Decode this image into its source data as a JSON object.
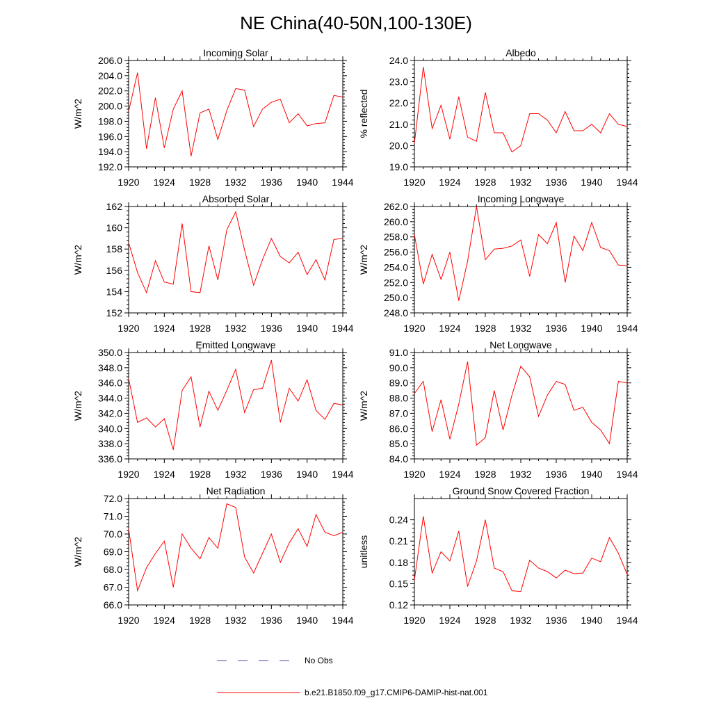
{
  "figure": {
    "title": "NE China(40-50N,100-130E)"
  },
  "legend": {
    "obs_label": "No Obs",
    "obs_color": "#4a4aa8",
    "model_label": "b.e21.B1850.f09_g17.CMIP6-DAMIP-hist-nat.001",
    "model_color": "#ff0000"
  },
  "chart_data": [
    {
      "type": "line",
      "title": "Incoming Solar",
      "ylabel": "W/m^2",
      "xlim": [
        1920,
        1944
      ],
      "xticks": [
        "1920",
        "1924",
        "1928",
        "1932",
        "1936",
        "1940",
        "1944"
      ],
      "ylim": [
        192.0,
        206.0
      ],
      "yticks": [
        "192.0",
        "194.0",
        "196.0",
        "198.0",
        "200.0",
        "202.0",
        "204.0",
        "206.0"
      ],
      "x": [
        1920,
        1921,
        1922,
        1923,
        1924,
        1925,
        1926,
        1927,
        1928,
        1929,
        1930,
        1931,
        1932,
        1933,
        1934,
        1935,
        1936,
        1937,
        1938,
        1939,
        1940,
        1941,
        1942,
        1943,
        1944
      ],
      "series": [
        {
          "values": [
            199.3,
            204.4,
            194.4,
            201.1,
            194.5,
            199.6,
            202.0,
            193.4,
            199.1,
            199.6,
            195.6,
            199.4,
            202.3,
            202.1,
            197.3,
            199.6,
            200.5,
            200.9,
            197.8,
            199.0,
            197.4,
            197.7,
            197.8,
            201.4,
            201.2
          ]
        }
      ]
    },
    {
      "type": "line",
      "title": "Albedo",
      "ylabel": "% reflected",
      "xlim": [
        1920,
        1944
      ],
      "xticks": [
        "1920",
        "1924",
        "1928",
        "1932",
        "1936",
        "1940",
        "1944"
      ],
      "ylim": [
        19.0,
        24.0
      ],
      "yticks": [
        "19.0",
        "20.0",
        "21.0",
        "22.0",
        "23.0",
        "24.0"
      ],
      "x": [
        1920,
        1921,
        1922,
        1923,
        1924,
        1925,
        1926,
        1927,
        1928,
        1929,
        1930,
        1931,
        1932,
        1933,
        1934,
        1935,
        1936,
        1937,
        1938,
        1939,
        1940,
        1941,
        1942,
        1943,
        1944
      ],
      "series": [
        {
          "values": [
            20.1,
            23.7,
            20.8,
            21.9,
            20.3,
            22.3,
            20.4,
            20.2,
            22.5,
            20.6,
            20.6,
            19.7,
            20.0,
            21.5,
            21.5,
            21.2,
            20.6,
            21.6,
            20.7,
            20.7,
            21.0,
            20.6,
            21.5,
            21.0,
            20.9
          ]
        }
      ]
    },
    {
      "type": "line",
      "title": "Absorbed Solar",
      "ylabel": "W/m^2",
      "xlim": [
        1920,
        1944
      ],
      "xticks": [
        "1920",
        "1924",
        "1928",
        "1932",
        "1936",
        "1940",
        "1944"
      ],
      "ylim": [
        152,
        162
      ],
      "yticks": [
        "152",
        "154",
        "156",
        "158",
        "160",
        "162"
      ],
      "x": [
        1920,
        1921,
        1922,
        1923,
        1924,
        1925,
        1926,
        1927,
        1928,
        1929,
        1930,
        1931,
        1932,
        1933,
        1934,
        1935,
        1936,
        1937,
        1938,
        1939,
        1940,
        1941,
        1942,
        1943,
        1944
      ],
      "series": [
        {
          "values": [
            158.6,
            155.8,
            153.9,
            156.9,
            154.9,
            154.7,
            160.4,
            154.0,
            153.9,
            158.3,
            155.1,
            159.8,
            161.5,
            157.9,
            154.6,
            157.0,
            159.0,
            157.3,
            156.7,
            157.7,
            155.6,
            157.0,
            155.1,
            158.9,
            159.0
          ]
        }
      ]
    },
    {
      "type": "line",
      "title": "Incoming Longwave",
      "ylabel": "W/m^2",
      "xlim": [
        1920,
        1944
      ],
      "xticks": [
        "1920",
        "1924",
        "1928",
        "1932",
        "1936",
        "1940",
        "1944"
      ],
      "ylim": [
        248.0,
        262.0
      ],
      "yticks": [
        "248.0",
        "250.0",
        "252.0",
        "254.0",
        "256.0",
        "258.0",
        "260.0",
        "262.0"
      ],
      "x": [
        1920,
        1921,
        1922,
        1923,
        1924,
        1925,
        1926,
        1927,
        1928,
        1929,
        1930,
        1931,
        1932,
        1933,
        1934,
        1935,
        1936,
        1937,
        1938,
        1939,
        1940,
        1941,
        1942,
        1943,
        1944
      ],
      "series": [
        {
          "values": [
            258.3,
            251.8,
            255.7,
            252.4,
            256.0,
            249.6,
            254.8,
            262.0,
            255.0,
            256.4,
            256.5,
            256.8,
            257.6,
            252.8,
            258.3,
            257.1,
            259.9,
            252.0,
            258.1,
            256.2,
            259.9,
            256.6,
            256.2,
            254.3,
            254.2
          ]
        }
      ]
    },
    {
      "type": "line",
      "title": "Emitted Longwave",
      "ylabel": "W/m^2",
      "xlim": [
        1920,
        1944
      ],
      "xticks": [
        "1920",
        "1924",
        "1928",
        "1932",
        "1936",
        "1940",
        "1944"
      ],
      "ylim": [
        336.0,
        350.0
      ],
      "yticks": [
        "336.0",
        "338.0",
        "340.0",
        "342.0",
        "344.0",
        "346.0",
        "348.0",
        "350.0"
      ],
      "x": [
        1920,
        1921,
        1922,
        1923,
        1924,
        1925,
        1926,
        1927,
        1928,
        1929,
        1930,
        1931,
        1932,
        1933,
        1934,
        1935,
        1936,
        1937,
        1938,
        1939,
        1940,
        1941,
        1942,
        1943,
        1944
      ],
      "series": [
        {
          "values": [
            346.6,
            340.8,
            341.4,
            340.2,
            341.3,
            337.2,
            345.0,
            346.8,
            340.2,
            344.9,
            342.4,
            345.0,
            347.8,
            342.1,
            345.1,
            345.3,
            349.0,
            340.8,
            345.3,
            343.6,
            346.4,
            342.4,
            341.2,
            343.3,
            343.1
          ]
        }
      ]
    },
    {
      "type": "line",
      "title": "Net Longwave",
      "ylabel": "W/m^2",
      "xlim": [
        1920,
        1944
      ],
      "xticks": [
        "1920",
        "1924",
        "1928",
        "1932",
        "1936",
        "1940",
        "1944"
      ],
      "ylim": [
        84.0,
        91.0
      ],
      "yticks": [
        "84.0",
        "85.0",
        "86.0",
        "87.0",
        "88.0",
        "89.0",
        "90.0",
        "91.0"
      ],
      "x": [
        1920,
        1921,
        1922,
        1923,
        1924,
        1925,
        1926,
        1927,
        1928,
        1929,
        1930,
        1931,
        1932,
        1933,
        1934,
        1935,
        1936,
        1937,
        1938,
        1939,
        1940,
        1941,
        1942,
        1943,
        1944
      ],
      "series": [
        {
          "values": [
            88.3,
            89.1,
            85.8,
            87.9,
            85.3,
            87.6,
            90.4,
            84.9,
            85.4,
            88.5,
            85.9,
            88.2,
            90.1,
            89.4,
            86.8,
            88.2,
            89.1,
            88.9,
            87.2,
            87.4,
            86.4,
            85.9,
            85.0,
            89.1,
            89.0
          ]
        }
      ]
    },
    {
      "type": "line",
      "title": "Net Radiation",
      "ylabel": "W/m^2",
      "xlim": [
        1920,
        1944
      ],
      "xticks": [
        "1920",
        "1924",
        "1928",
        "1932",
        "1936",
        "1940",
        "1944"
      ],
      "ylim": [
        66.0,
        72.0
      ],
      "yticks": [
        "66.0",
        "67.0",
        "68.0",
        "69.0",
        "70.0",
        "71.0",
        "72.0"
      ],
      "x": [
        1920,
        1921,
        1922,
        1923,
        1924,
        1925,
        1926,
        1927,
        1928,
        1929,
        1930,
        1931,
        1932,
        1933,
        1934,
        1935,
        1936,
        1937,
        1938,
        1939,
        1940,
        1941,
        1942,
        1943,
        1944
      ],
      "series": [
        {
          "values": [
            70.3,
            66.8,
            68.1,
            68.9,
            69.6,
            67.0,
            70.0,
            69.2,
            68.6,
            69.8,
            69.2,
            71.7,
            71.5,
            68.7,
            67.8,
            68.9,
            70.0,
            68.4,
            69.5,
            70.3,
            69.3,
            71.1,
            70.1,
            69.9,
            70.1
          ]
        }
      ]
    },
    {
      "type": "line",
      "title": "Ground Snow Covered Fraction",
      "ylabel": "unitless",
      "xlim": [
        1920,
        1944
      ],
      "xticks": [
        "1920",
        "1924",
        "1928",
        "1932",
        "1936",
        "1940",
        "1944"
      ],
      "ylim": [
        0.12,
        0.27
      ],
      "yticks": [
        "0.12",
        "0.15",
        "0.18",
        "0.21",
        "0.24"
      ],
      "x": [
        1920,
        1921,
        1922,
        1923,
        1924,
        1925,
        1926,
        1927,
        1928,
        1929,
        1930,
        1931,
        1932,
        1933,
        1934,
        1935,
        1936,
        1937,
        1938,
        1939,
        1940,
        1941,
        1942,
        1943,
        1944
      ],
      "series": [
        {
          "values": [
            0.155,
            0.245,
            0.165,
            0.195,
            0.182,
            0.224,
            0.146,
            0.182,
            0.24,
            0.172,
            0.167,
            0.14,
            0.139,
            0.183,
            0.172,
            0.167,
            0.158,
            0.169,
            0.164,
            0.165,
            0.186,
            0.181,
            0.215,
            0.193,
            0.163
          ]
        }
      ]
    }
  ]
}
